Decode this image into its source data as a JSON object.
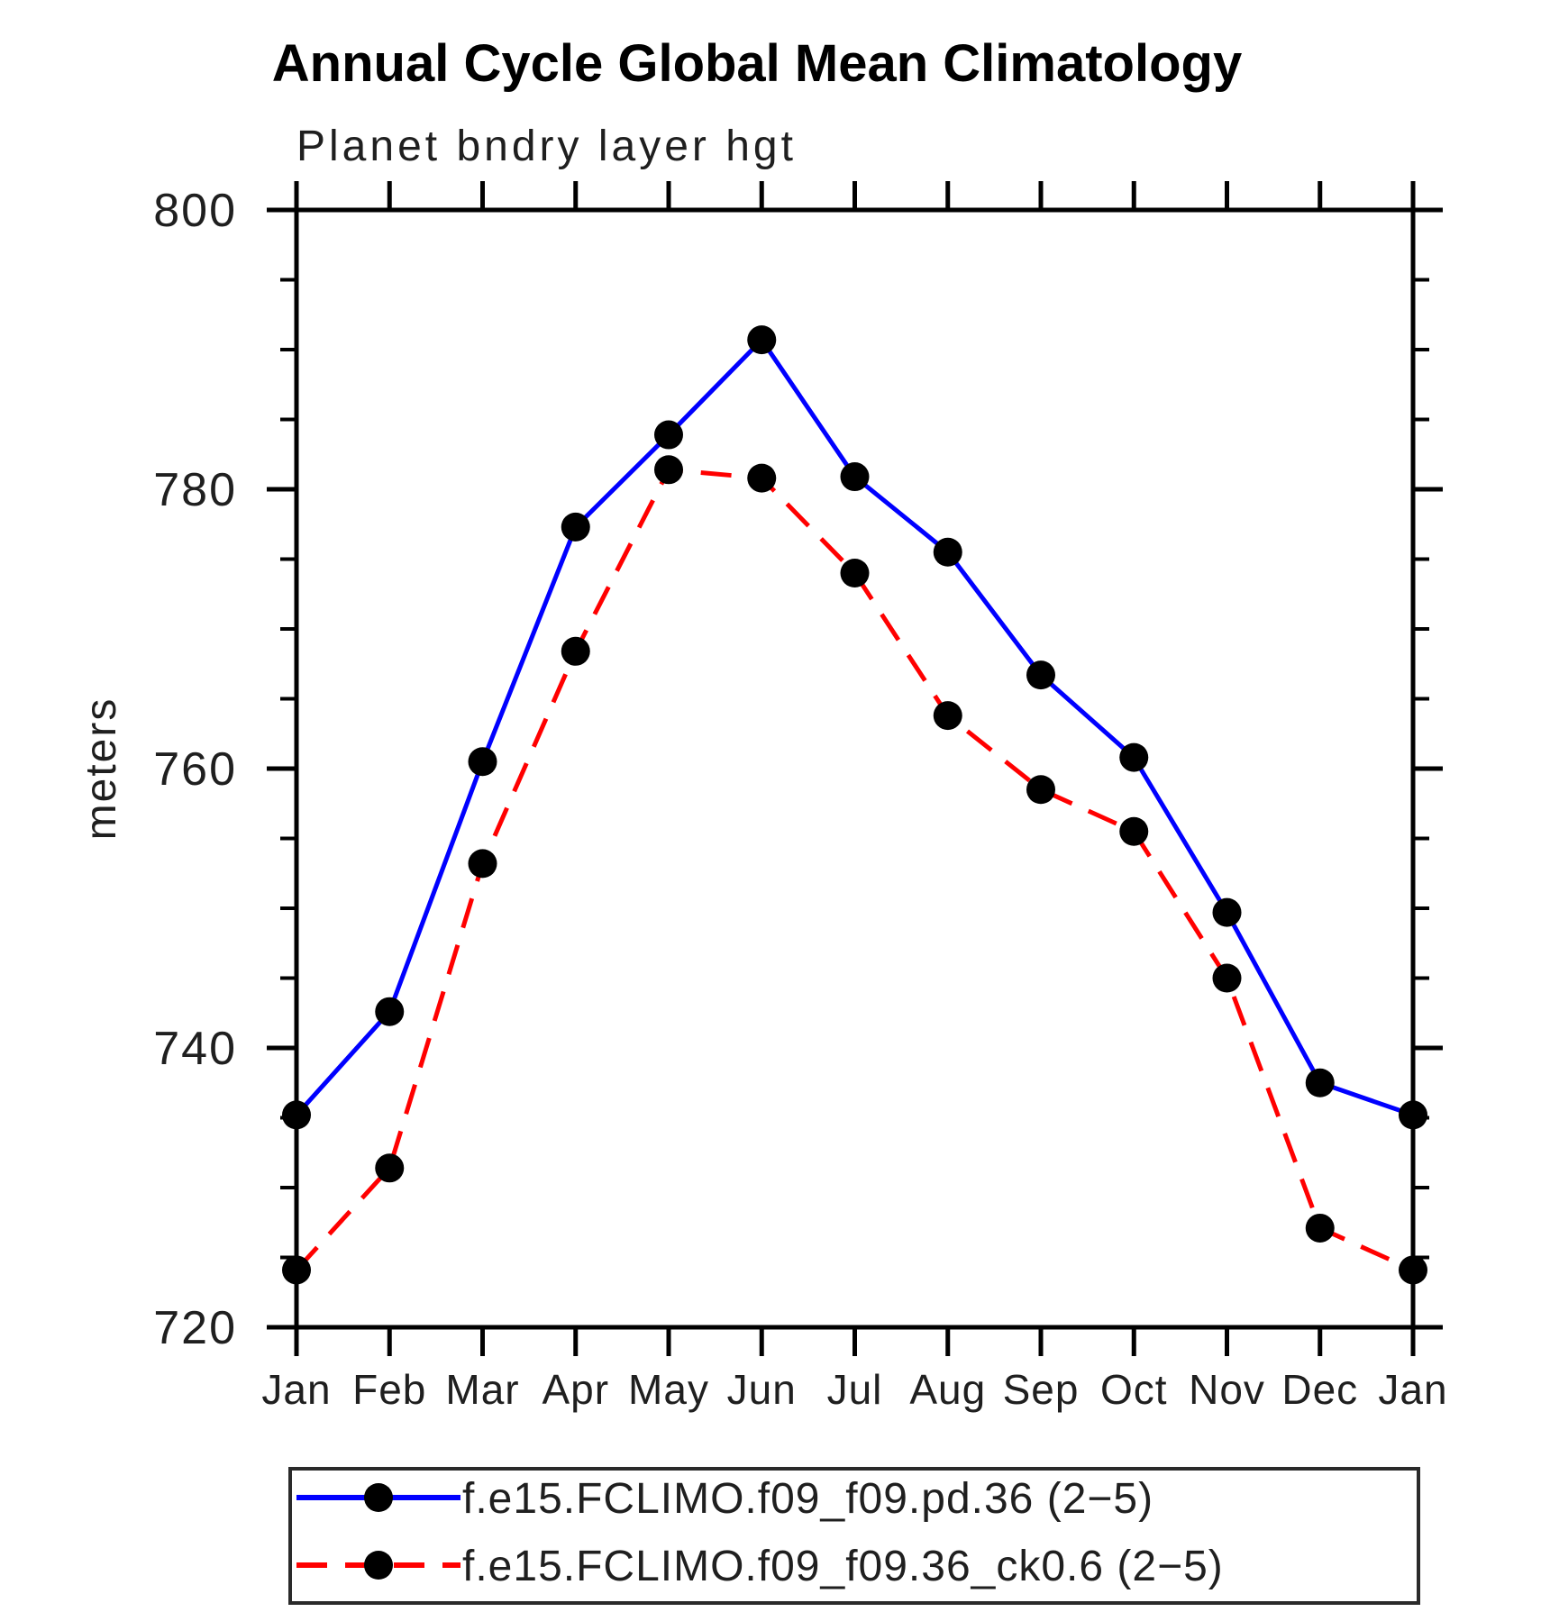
{
  "header": {
    "title": "Annual Cycle Global Mean Climatology",
    "subtitle": "Planet bndry layer hgt"
  },
  "chart_data": {
    "type": "line",
    "title": "Annual Cycle Global Mean Climatology",
    "subtitle": "Planet bndry layer hgt",
    "xlabel": "",
    "ylabel": "meters",
    "categories": [
      "Jan",
      "Feb",
      "Mar",
      "Apr",
      "May",
      "Jun",
      "Jul",
      "Aug",
      "Sep",
      "Oct",
      "Nov",
      "Dec",
      "Jan"
    ],
    "ylim": [
      720,
      800
    ],
    "ytick_major": [
      720,
      740,
      760,
      780,
      800
    ],
    "ytick_minor_step": 5,
    "grid": false,
    "legend_position": "bottom",
    "marker": "filled-circle",
    "marker_color": "#000000",
    "series": [
      {
        "name": "f.e15.FCLIMO.f09_f09.pd.36 (2−5)",
        "color": "#0000ff",
        "line_style": "solid",
        "values": [
          735.2,
          742.6,
          760.5,
          777.3,
          783.9,
          790.7,
          780.9,
          775.5,
          766.7,
          760.8,
          749.7,
          737.5,
          735.2
        ]
      },
      {
        "name": "f.e15.FCLIMO.f09_f09.36_ck0.6 (2−5)",
        "color": "#ff0000",
        "line_style": "dashed",
        "values": [
          724.1,
          731.4,
          753.2,
          768.4,
          781.4,
          780.8,
          774.0,
          763.8,
          758.5,
          755.5,
          745.0,
          727.1,
          724.1
        ]
      }
    ]
  },
  "colors": {
    "axis": "#000000",
    "background": "#ffffff",
    "series_blue": "#0000ff",
    "series_red": "#ff0000"
  }
}
